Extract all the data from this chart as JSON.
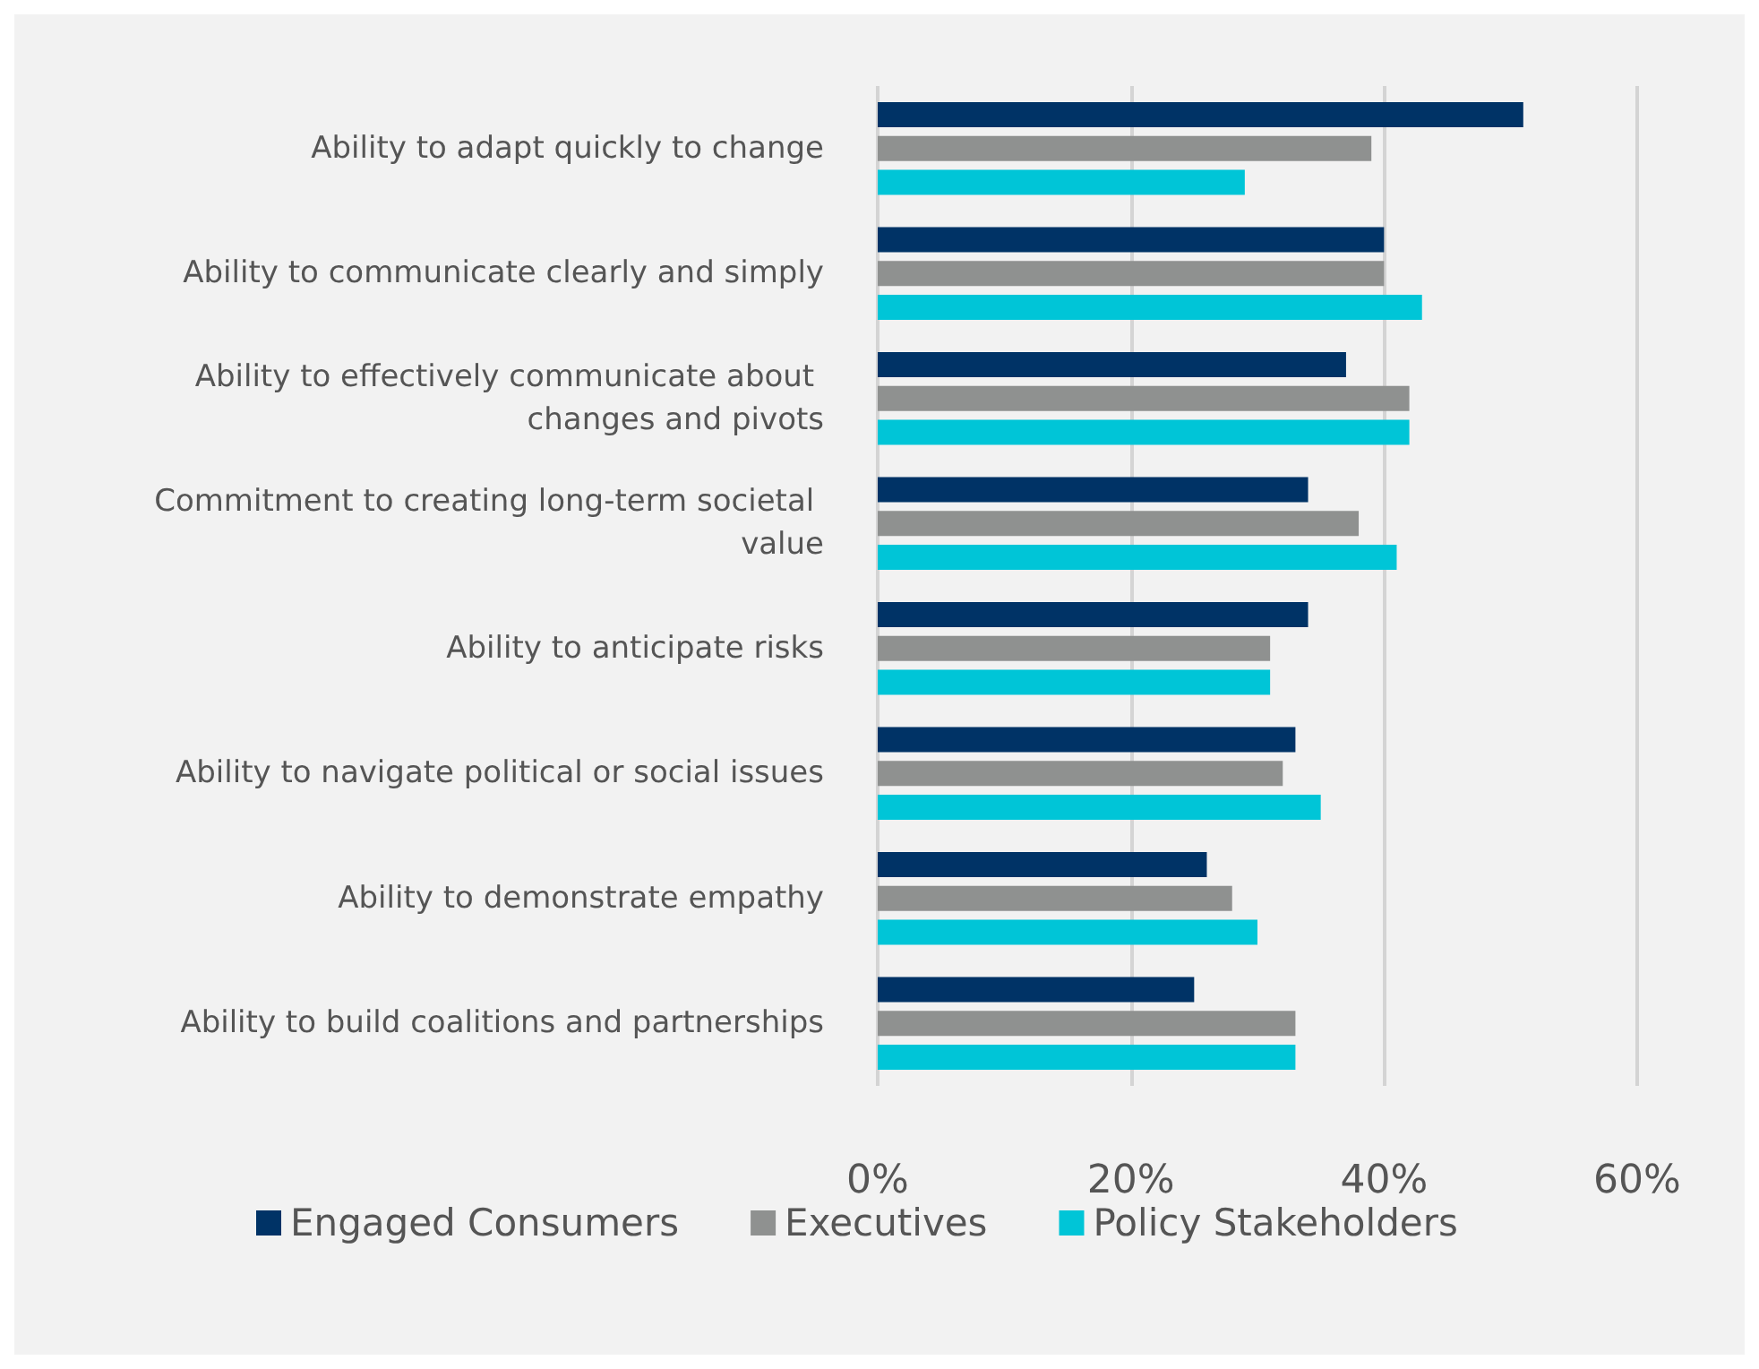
{
  "chart_data": {
    "type": "bar",
    "orientation": "horizontal",
    "categories": [
      "Ability to adapt quickly to change",
      "Ability to communicate clearly and simply",
      "Ability to effectively communicate about changes and pivots",
      "Commitment to creating long-term societal value",
      "Ability to anticipate risks",
      "Ability to navigate political or social issues",
      "Ability to demonstrate empathy",
      "Ability to build coalitions and partnerships"
    ],
    "series": [
      {
        "name": "Engaged Consumers",
        "color": "#003366",
        "values": [
          51,
          40,
          37,
          34,
          34,
          33,
          26,
          25
        ]
      },
      {
        "name": "Executives",
        "color": "#8f9190",
        "values": [
          39,
          40,
          42,
          38,
          31,
          32,
          28,
          33
        ]
      },
      {
        "name": "Policy Stakeholders",
        "color": "#00c5d7",
        "values": [
          29,
          43,
          42,
          41,
          31,
          35,
          30,
          33
        ]
      }
    ],
    "xlim": [
      0,
      60
    ],
    "xticks": [
      {
        "value": 0,
        "label": "0%"
      },
      {
        "value": 20,
        "label": "20%"
      },
      {
        "value": 40,
        "label": "40%"
      },
      {
        "value": 60,
        "label": "60%"
      }
    ],
    "grid": "x",
    "legend": "bottom"
  }
}
